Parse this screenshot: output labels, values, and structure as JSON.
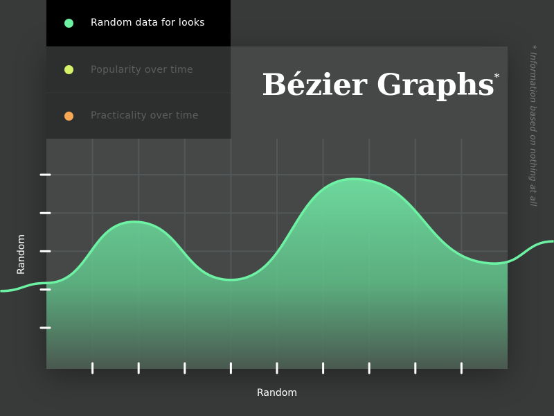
{
  "legend": {
    "items": [
      {
        "label": "Random data for looks",
        "color": "#6df2a4",
        "active": true
      },
      {
        "label": "Popularity over time",
        "color": "#d6f26a",
        "active": false
      },
      {
        "label": "Practicality over time",
        "color": "#f7a855",
        "active": false
      }
    ]
  },
  "title": "Bézier Graphs",
  "title_mark": "*",
  "note": "* Information based on nothing at all",
  "chart_data": {
    "type": "area",
    "title": "Bézier Graphs",
    "xlabel": "Random",
    "ylabel": "Random",
    "xlim": [
      0,
      10
    ],
    "ylim": [
      0,
      5.5
    ],
    "grid": true,
    "x_ticks": [
      1,
      2,
      3,
      4,
      5,
      6,
      7,
      8,
      9
    ],
    "y_ticks": [
      1,
      2,
      3,
      4,
      5
    ],
    "legend_position": "top-left",
    "series": [
      {
        "name": "Random data for looks",
        "color": "#6df2a4",
        "x": [
          -1,
          0,
          1.9,
          4.0,
          6.65,
          9.73,
          11
        ],
        "y": [
          1.96,
          2.17,
          3.77,
          2.25,
          4.89,
          2.68,
          3.26
        ]
      }
    ]
  }
}
